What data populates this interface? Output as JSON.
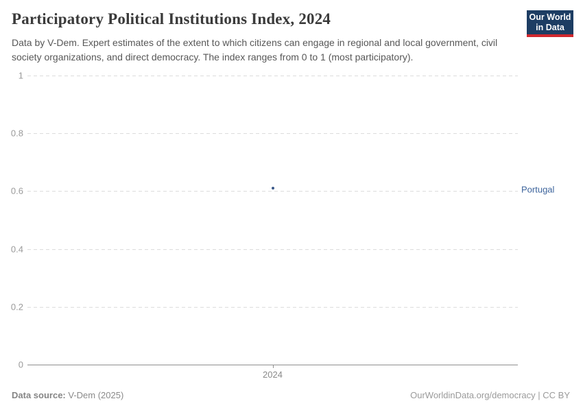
{
  "header": {
    "title": "Participatory Political Institutions Index, 2024",
    "subtitle": "Data by V-Dem. Expert estimates of the extent to which citizens can engage in regional and local government, civil society organizations, and direct democracy. The index ranges from 0 to 1 (most participatory)."
  },
  "logo": {
    "line1": "Our World",
    "line2": "in Data",
    "background_color": "#1d3d63",
    "accent_color": "#d0282e"
  },
  "chart_data": {
    "type": "scatter",
    "title": "Participatory Political Institutions Index, 2024",
    "x": [
      2024
    ],
    "xticks": [
      "2024"
    ],
    "series": [
      {
        "name": "Portugal",
        "values": [
          0.61
        ],
        "color": "#3d5a8a"
      }
    ],
    "entity_label_color": "#3d649c",
    "yticks": [
      0,
      0.2,
      0.4,
      0.6,
      0.8,
      1
    ],
    "ylim": [
      0,
      1
    ],
    "xlabel": "",
    "ylabel": "",
    "grid": "horizontal-dashed",
    "legend_position": "inline-right-label"
  },
  "footer": {
    "source_label": "Data source:",
    "source_value": " V-Dem (2025)",
    "right_text": "OurWorldinData.org/democracy | CC BY"
  }
}
